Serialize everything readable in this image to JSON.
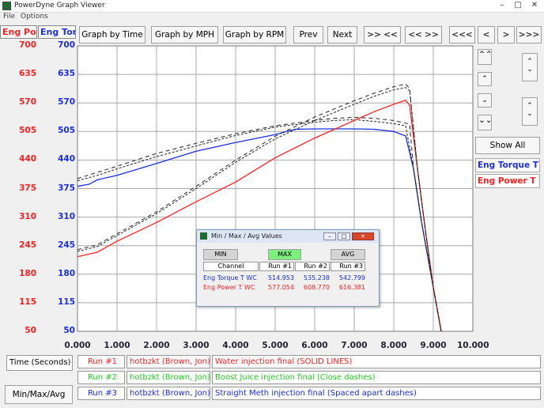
{
  "window": {
    "title": "PowerDyne Graph Viewer"
  },
  "menu": [
    "File",
    "Options"
  ],
  "toolbar": {
    "graph_time": "Graph by Time",
    "graph_mph": "Graph by MPH",
    "graph_rpm": "Graph by RPM",
    "prev": "Prev",
    "next": "Next",
    "zoom_in": ">> <<",
    "zoom_out": "<< >>",
    "first": "<<<",
    "back": "<",
    "forward": ">",
    "last": ">>>"
  },
  "axis_tabs": {
    "power": "Eng Power",
    "torque": "Eng Torque"
  },
  "side": {
    "show_all": "Show All",
    "legend_torque": "Eng Torque T WC",
    "legend_power": "Eng Power T WC"
  },
  "colors": {
    "power": "#ff2020",
    "torque": "#1a2ee6",
    "boost": "#22cc22"
  },
  "bottom": {
    "time_label": "Time (Seconds)",
    "minmax_button": "Min/Max/Avg",
    "runs": [
      {
        "run": "Run #1",
        "driver": "hotbzkt (Brown, Jon)",
        "desc": "Water injection final (SOLID LINES)"
      },
      {
        "run": "Run #2",
        "driver": "hotbzkt (Brown, Jon)",
        "desc": "Boost Juice injection final (Close dashes)"
      },
      {
        "run": "Run #3",
        "driver": "hotbzkt (Brown, Jon)",
        "desc": "Straight Meth injection final (Spaced apart dashes)"
      }
    ]
  },
  "dialog": {
    "title": "Min / Max / Avg Values",
    "tabs": {
      "min": "MIN",
      "max": "MAX",
      "avg": "AVG"
    },
    "headers": [
      "Channel",
      "Run #1",
      "Run #2",
      "Run #3"
    ],
    "rows": [
      {
        "channel": "Eng Torque T WC",
        "values": [
          "514.953",
          "535.238",
          "542.799"
        ]
      },
      {
        "channel": "Eng Power T WC",
        "values": [
          "577.054",
          "608.770",
          "616.381"
        ]
      }
    ]
  },
  "chart_data": {
    "type": "line",
    "xlabel": "Time (Seconds)",
    "xlim": [
      0,
      10
    ],
    "x_ticks": [
      "0.000",
      "1.000",
      "2.000",
      "3.000",
      "4.000",
      "5.000",
      "6.000",
      "7.000",
      "8.000",
      "9.000",
      "10.000"
    ],
    "y_ticks": [
      "700",
      "635",
      "570",
      "505",
      "440",
      "375",
      "310",
      "245",
      "180",
      "115",
      "50"
    ],
    "ylim": [
      50,
      700
    ],
    "grid": true,
    "series": [
      {
        "name": "Eng Torque T WC",
        "run": "Run #1",
        "style": "solid",
        "x": [
          0,
          0.3,
          0.5,
          1,
          2,
          3,
          4,
          5,
          5.5,
          6,
          7,
          7.5,
          8,
          8.3,
          8.5,
          8.7,
          9.0,
          9.2
        ],
        "y": [
          380,
          385,
          395,
          405,
          432,
          460,
          480,
          498,
          510,
          511,
          511,
          510,
          505,
          495,
          420,
          300,
          150,
          50
        ]
      },
      {
        "name": "Eng Torque T WC",
        "run": "Run #2",
        "style": "dash",
        "x": [
          0,
          0.5,
          1,
          2,
          3,
          4,
          5,
          6,
          6.5,
          7,
          7.5,
          8,
          8.3,
          8.5,
          8.7,
          9.0,
          9.2
        ],
        "y": [
          393,
          405,
          420,
          448,
          472,
          496,
          515,
          526,
          530,
          532,
          528,
          523,
          518,
          420,
          300,
          150,
          50
        ]
      },
      {
        "name": "Eng Torque T WC",
        "run": "Run #3",
        "style": "spaced-dash",
        "x": [
          0,
          0.5,
          1,
          2,
          3,
          4,
          5,
          6,
          6.5,
          7,
          7.5,
          8,
          8.4,
          8.5,
          8.7,
          9.0,
          9.2
        ],
        "y": [
          398,
          412,
          426,
          455,
          478,
          500,
          518,
          530,
          535,
          537,
          535,
          530,
          522,
          420,
          300,
          150,
          50
        ]
      },
      {
        "name": "Eng Power T WC",
        "run": "Run #1",
        "style": "solid",
        "x": [
          0,
          0.5,
          1,
          2,
          3,
          4,
          5,
          6,
          7,
          7.5,
          8,
          8.3,
          8.4,
          8.6,
          8.8,
          9.0,
          9.2
        ],
        "y": [
          220,
          230,
          255,
          298,
          345,
          390,
          445,
          490,
          530,
          550,
          567,
          576,
          565,
          420,
          280,
          150,
          50
        ]
      },
      {
        "name": "Eng Power T WC",
        "run": "Run #2",
        "style": "dash",
        "x": [
          0,
          0.5,
          1,
          2,
          3,
          4,
          5,
          6,
          7,
          7.5,
          8,
          8.3,
          8.4,
          8.6,
          8.8,
          9.0,
          9.2
        ],
        "y": [
          232,
          243,
          268,
          318,
          375,
          435,
          488,
          530,
          567,
          585,
          600,
          605,
          598,
          420,
          280,
          150,
          50
        ]
      },
      {
        "name": "Eng Power T WC",
        "run": "Run #3",
        "style": "spaced-dash",
        "x": [
          0,
          0.5,
          1,
          2,
          3,
          4,
          5,
          6,
          7,
          7.5,
          8,
          8.3,
          8.4,
          8.6,
          8.8,
          9.0,
          9.2
        ],
        "y": [
          236,
          247,
          272,
          322,
          380,
          440,
          494,
          538,
          575,
          592,
          607,
          613,
          603,
          420,
          280,
          150,
          50
        ]
      }
    ]
  }
}
